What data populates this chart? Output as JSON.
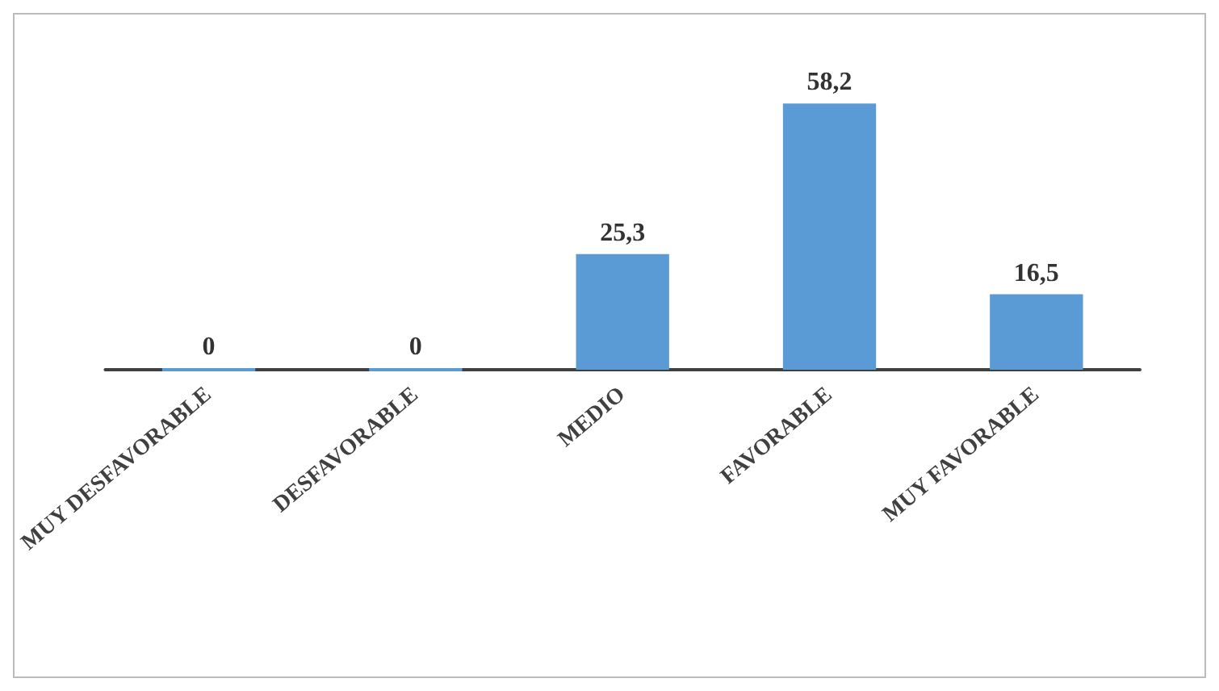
{
  "chart_data": {
    "type": "bar",
    "categories": [
      "MUY DESFAVORABLE",
      "DESFAVORABLE",
      "MEDIO",
      "FAVORABLE",
      "MUY FAVORABLE"
    ],
    "values": [
      0,
      0,
      25.3,
      58.2,
      16.5
    ],
    "value_labels": [
      "0",
      "0",
      "25,3",
      "58,2",
      "16,5"
    ],
    "color": "#5b9bd5",
    "grid": false
  }
}
